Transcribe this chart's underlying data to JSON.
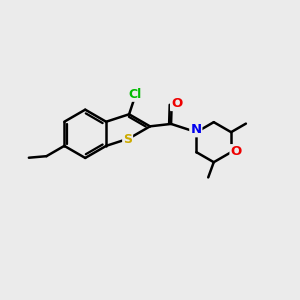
{
  "bg": "#ebebeb",
  "bc": "#000000",
  "lw": 1.8,
  "atom_colors": {
    "Cl": "#00bb00",
    "S": "#ccaa00",
    "O": "#ee0000",
    "N": "#0000ee"
  },
  "fs": 9.5
}
